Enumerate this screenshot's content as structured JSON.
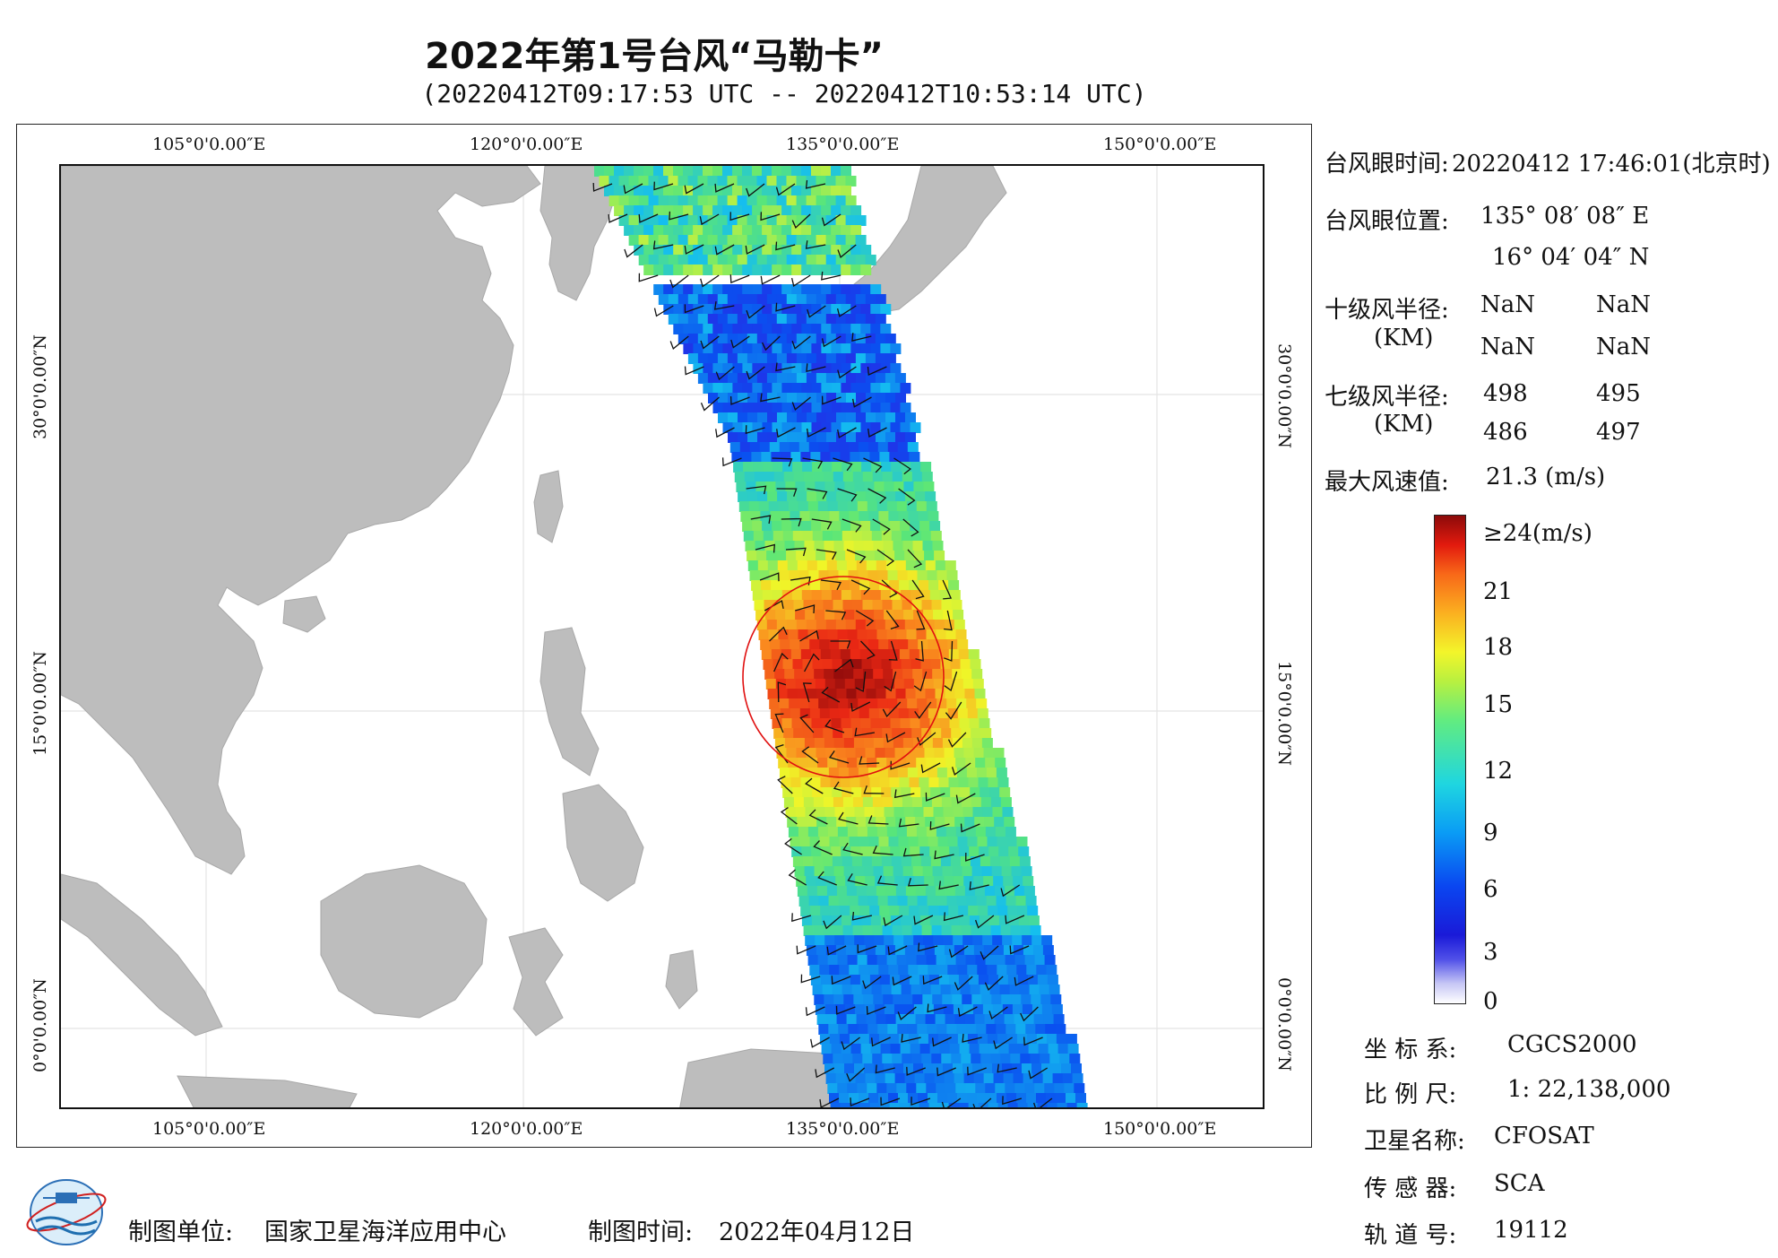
{
  "title": "2022年第1号台风“马勒卡”",
  "subtitle": "(20220412T09:17:53 UTC -- 20220412T10:53:14 UTC)",
  "map": {
    "lon_labels": [
      "105°0'0.00″E",
      "120°0'0.00″E",
      "135°0'0.00″E",
      "150°0'0.00″E"
    ],
    "lat_labels": [
      "30°0'0.00″N",
      "15°0'0.00″N",
      "0°0'0.00″N"
    ],
    "land_color": "#bdbdbd",
    "ocean_color": "#ffffff",
    "circle_color": "#e01010"
  },
  "info": {
    "eye_time_label": "台风眼时间:",
    "eye_time_value": "20220412 17:46:01(北京时)",
    "eye_pos_label": "台风眼位置:",
    "eye_lon": "135° 08′ 08″ E",
    "eye_lat": "16° 04′ 04″ N",
    "r10_label": "十级风半径:",
    "r10_unit": "(KM)",
    "r10_values": [
      "NaN",
      "NaN",
      "NaN",
      "NaN"
    ],
    "r7_label": "七级风半径:",
    "r7_unit": "(KM)",
    "r7_values": [
      "498",
      "495",
      "486",
      "497"
    ],
    "max_wind_label": "最大风速值:",
    "max_wind_value": "21.3  (m/s)"
  },
  "colorbar": {
    "ticks": [
      "≥24(m/s)",
      "21",
      "18",
      "15",
      "12",
      "9",
      "6",
      "3",
      "0"
    ]
  },
  "meta": {
    "crs_label": "坐 标 系:",
    "crs_value": "CGCS2000",
    "scale_label": "比 例 尺:",
    "scale_value": "1: 22,138,000",
    "satellite_label": "卫星名称:",
    "satellite_value": "CFOSAT",
    "sensor_label": "传 感 器:",
    "sensor_value": "SCA",
    "orbit_label": "轨 道 号:",
    "orbit_value": "19112"
  },
  "footer": {
    "producer_label": "制图单位:",
    "producer_value": "国家卫星海洋应用中心",
    "date_label": "制图时间:",
    "date_value": "2022年04月12日"
  }
}
